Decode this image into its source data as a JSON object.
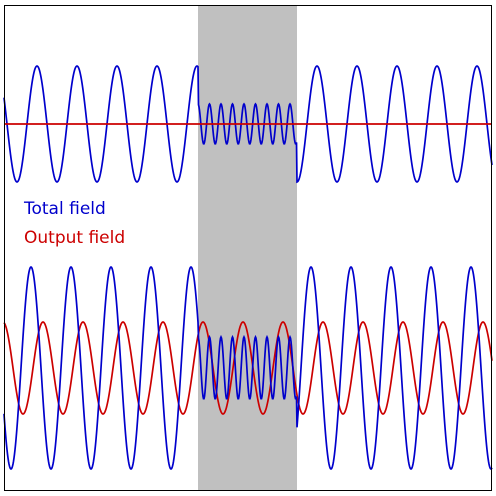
{
  "legend": {
    "total_label": "Total field",
    "output_label": "Output field"
  },
  "colors": {
    "total": "#0000cc",
    "output": "#cc0000",
    "slab": "#c0c0c0",
    "frame": "#000000",
    "background": "#ffffff"
  }
}
